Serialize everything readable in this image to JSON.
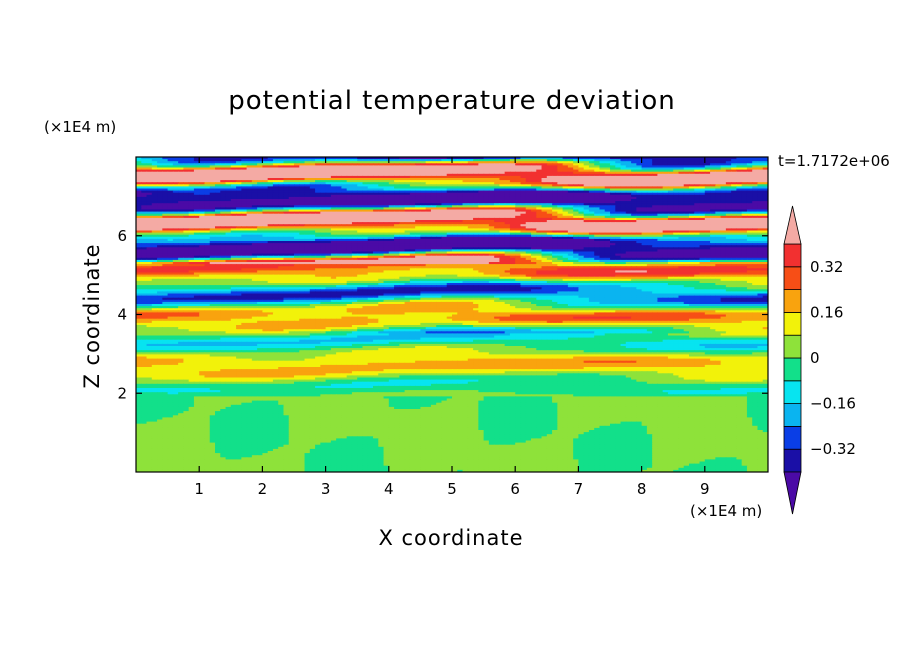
{
  "chart_data": {
    "type": "heatmap",
    "title": "potential temperature deviation",
    "time_label": "t=1.7172e+06",
    "xlabel": "X coordinate",
    "ylabel": "Z coordinate",
    "x_unit": "(×1E4 m)",
    "y_unit": "(×1E4 m)",
    "xlim": [
      0,
      10
    ],
    "ylim": [
      0,
      8
    ],
    "x_ticks": [
      1,
      2,
      3,
      4,
      5,
      6,
      7,
      8,
      9
    ],
    "y_ticks": [
      2,
      4,
      6
    ],
    "colorbar": {
      "levels": [
        -0.4,
        -0.32,
        -0.24,
        -0.16,
        -0.08,
        0,
        0.08,
        0.16,
        0.24,
        0.32,
        0.4
      ],
      "colors": [
        "#4b0aa6",
        "#1a0fa6",
        "#0a3ee6",
        "#0ab4f0",
        "#07e4f0",
        "#12e08a",
        "#8ee23a",
        "#f2f20a",
        "#f9a30e",
        "#f74e16",
        "#f23030",
        "#f4aaa4"
      ],
      "tick_labels": [
        "0.32",
        "0.16",
        "0",
        "-0.16",
        "-0.32"
      ],
      "tick_values": [
        0.32,
        0.16,
        0,
        -0.16,
        -0.32
      ],
      "extend": "both"
    },
    "field_description_bands": [
      {
        "z_range": [
          0,
          1.9
        ],
        "values": [
          -0.04,
          0.02
        ]
      },
      {
        "z_range": [
          1.9,
          3.5
        ],
        "values": [
          -0.12,
          0.1
        ]
      },
      {
        "z_range": [
          3.5,
          5.3
        ],
        "values": [
          -0.2,
          0.3
        ]
      },
      {
        "z_range": [
          5.3,
          8.0
        ],
        "values": [
          -0.45,
          0.45
        ]
      }
    ]
  }
}
